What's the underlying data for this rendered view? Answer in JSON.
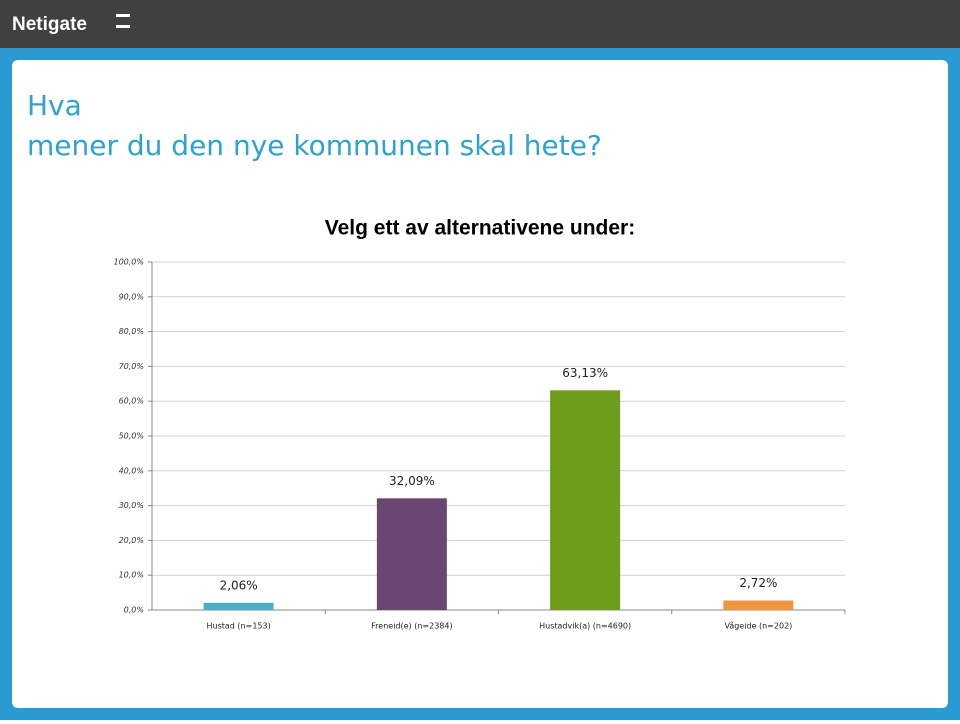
{
  "header": {
    "logo": "Netigate"
  },
  "slide": {
    "title_lines": [
      "Hva",
      "mener du den nye kommunen skal hete?"
    ]
  },
  "chart_data": {
    "type": "bar",
    "title": "Velg ett av alternativene under:",
    "categories": [
      "Hustad (n=153)",
      "Freneid(e) (n=2384)",
      "Hustadvik(a) (n=4690)",
      "Vågeide (n=202)"
    ],
    "values": [
      2.06,
      32.09,
      63.13,
      2.72
    ],
    "value_labels": [
      "2,06%",
      "32,09%",
      "63,13%",
      "2,72%"
    ],
    "colors": [
      "#4bacc6",
      "#6b4672",
      "#6e9d1b",
      "#f0963c"
    ],
    "ylim": [
      0,
      100
    ],
    "yticks": [
      {
        "value": 0,
        "label": "0,0%"
      },
      {
        "value": 10,
        "label": "10,0%"
      },
      {
        "value": 20,
        "label": "20,0%"
      },
      {
        "value": 30,
        "label": "30,0%"
      },
      {
        "value": 40,
        "label": "40,0%"
      },
      {
        "value": 50,
        "label": "50,0%"
      },
      {
        "value": 60,
        "label": "60,0%"
      },
      {
        "value": 70,
        "label": "70,0%"
      },
      {
        "value": 80,
        "label": "80,0%"
      },
      {
        "value": 90,
        "label": "90,0%"
      },
      {
        "value": 100,
        "label": "100,0%"
      }
    ],
    "grid": true
  }
}
